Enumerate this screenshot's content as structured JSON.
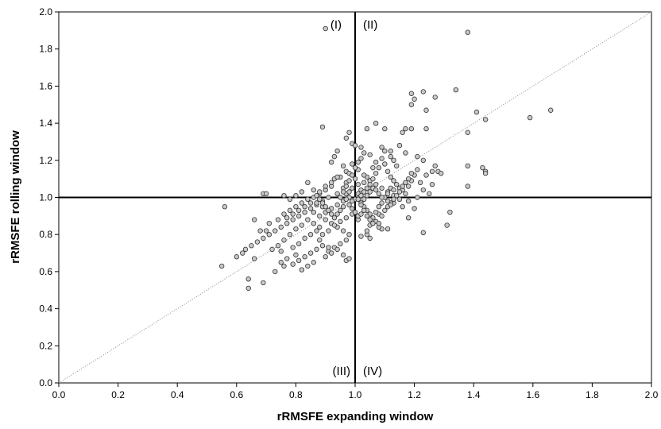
{
  "chart_data": {
    "type": "scatter",
    "title": "",
    "xlabel": "rRMSFE expanding window",
    "ylabel": "rRMSFE rolling window",
    "xlim": [
      0.0,
      2.0
    ],
    "ylim": [
      0.0,
      2.0
    ],
    "xticks": [
      "0.0",
      "0.2",
      "0.4",
      "0.6",
      "0.8",
      "1.0",
      "1.2",
      "1.4",
      "1.6",
      "1.8",
      "2.0"
    ],
    "yticks": [
      "0.0",
      "0.2",
      "0.4",
      "0.6",
      "0.8",
      "1.0",
      "1.2",
      "1.4",
      "1.6",
      "1.8",
      "2.0"
    ],
    "grid": false,
    "reference_lines": {
      "vertical": 1.0,
      "horizontal": 1.0,
      "diagonal": "y = x (dotted)"
    },
    "quadrant_labels": {
      "q1": "(I)",
      "q2": "(II)",
      "q3": "(III)",
      "q4": "(IV)"
    },
    "colors": {
      "marker_fill": "#c8c8c8",
      "marker_stroke": "#333333",
      "axes": "#000000",
      "diagonal": "#888888"
    },
    "points": [
      [
        0.9,
        1.91
      ],
      [
        1.38,
        1.89
      ],
      [
        1.66,
        1.47
      ],
      [
        1.59,
        1.43
      ],
      [
        1.44,
        1.42
      ],
      [
        1.41,
        1.46
      ],
      [
        1.38,
        1.35
      ],
      [
        1.34,
        1.58
      ],
      [
        1.27,
        1.54
      ],
      [
        1.23,
        1.57
      ],
      [
        1.2,
        1.53
      ],
      [
        1.19,
        1.56
      ],
      [
        1.19,
        1.5
      ],
      [
        1.24,
        1.47
      ],
      [
        1.19,
        1.37
      ],
      [
        1.16,
        1.35
      ],
      [
        1.17,
        1.37
      ],
      [
        1.24,
        1.37
      ],
      [
        1.1,
        1.37
      ],
      [
        1.07,
        1.4
      ],
      [
        1.04,
        1.37
      ],
      [
        0.98,
        1.35
      ],
      [
        0.97,
        1.32
      ],
      [
        0.89,
        1.38
      ],
      [
        0.99,
        1.29
      ],
      [
        1.0,
        1.28
      ],
      [
        1.02,
        1.27
      ],
      [
        0.94,
        1.25
      ],
      [
        1.03,
        1.24
      ],
      [
        1.05,
        1.23
      ],
      [
        1.09,
        1.27
      ],
      [
        1.15,
        1.28
      ],
      [
        1.12,
        1.25
      ],
      [
        1.17,
        1.24
      ],
      [
        1.21,
        1.22
      ],
      [
        1.23,
        1.2
      ],
      [
        1.27,
        1.17
      ],
      [
        1.28,
        1.14
      ],
      [
        1.38,
        1.17
      ],
      [
        1.43,
        1.16
      ],
      [
        1.44,
        1.14
      ],
      [
        1.44,
        1.13
      ],
      [
        1.38,
        1.06
      ],
      [
        1.32,
        0.92
      ],
      [
        1.31,
        0.85
      ],
      [
        1.23,
        0.81
      ],
      [
        1.2,
        0.94
      ],
      [
        1.18,
        0.89
      ],
      [
        1.16,
        0.95
      ],
      [
        1.13,
        0.97
      ],
      [
        1.08,
        0.91
      ],
      [
        1.05,
        0.85
      ],
      [
        1.04,
        0.8
      ],
      [
        1.04,
        0.82
      ],
      [
        1.05,
        0.78
      ],
      [
        1.02,
        0.79
      ],
      [
        1.09,
        0.83
      ],
      [
        1.11,
        0.83
      ],
      [
        1.08,
        0.84
      ],
      [
        1.01,
        0.88
      ],
      [
        1.0,
        0.99
      ],
      [
        1.01,
        1.02
      ],
      [
        1.02,
        1.04
      ],
      [
        1.03,
        1.08
      ],
      [
        1.04,
        1.11
      ],
      [
        1.06,
        1.16
      ],
      [
        1.07,
        1.19
      ],
      [
        1.09,
        1.21
      ],
      [
        1.1,
        1.18
      ],
      [
        1.11,
        1.14
      ],
      [
        1.12,
        1.11
      ],
      [
        1.13,
        1.09
      ],
      [
        1.14,
        1.07
      ],
      [
        1.15,
        1.05
      ],
      [
        1.16,
        1.04
      ],
      [
        1.17,
        1.02
      ],
      [
        1.18,
        1.06
      ],
      [
        1.19,
        1.09
      ],
      [
        1.2,
        1.12
      ],
      [
        1.21,
        1.15
      ],
      [
        1.22,
        1.08
      ],
      [
        1.23,
        1.04
      ],
      [
        1.25,
        1.02
      ],
      [
        1.26,
        1.07
      ],
      [
        1.24,
        1.12
      ],
      [
        1.26,
        1.14
      ],
      [
        1.29,
        1.13
      ],
      [
        1.21,
        1.0
      ],
      [
        1.18,
        0.98
      ],
      [
        1.15,
        0.99
      ],
      [
        1.13,
        1.01
      ],
      [
        1.11,
        1.03
      ],
      [
        1.09,
        1.05
      ],
      [
        1.07,
        1.07
      ],
      [
        1.05,
        1.09
      ],
      [
        1.03,
        1.12
      ],
      [
        1.01,
        1.15
      ],
      [
        0.99,
        1.18
      ],
      [
        0.97,
        1.14
      ],
      [
        0.95,
        1.11
      ],
      [
        0.93,
        1.1
      ],
      [
        0.92,
        1.06
      ],
      [
        0.9,
        1.04
      ],
      [
        0.88,
        1.02
      ],
      [
        0.86,
        1.04
      ],
      [
        0.84,
        1.08
      ],
      [
        0.82,
        1.03
      ],
      [
        0.8,
        1.01
      ],
      [
        0.78,
        0.99
      ],
      [
        0.76,
        1.01
      ],
      [
        0.69,
        1.02
      ],
      [
        0.7,
        1.02
      ],
      [
        0.92,
        1.19
      ],
      [
        0.93,
        1.22
      ],
      [
        0.96,
        1.17
      ],
      [
        0.98,
        1.13
      ],
      [
        0.97,
        1.08
      ],
      [
        0.96,
        1.05
      ],
      [
        0.94,
        1.02
      ],
      [
        0.91,
        1.0
      ],
      [
        0.89,
        0.98
      ],
      [
        0.87,
        0.96
      ],
      [
        0.85,
        0.94
      ],
      [
        0.83,
        0.92
      ],
      [
        0.81,
        0.9
      ],
      [
        0.79,
        0.88
      ],
      [
        0.77,
        0.86
      ],
      [
        0.75,
        0.84
      ],
      [
        0.73,
        0.82
      ],
      [
        0.71,
        0.8
      ],
      [
        0.69,
        0.78
      ],
      [
        0.67,
        0.76
      ],
      [
        0.65,
        0.74
      ],
      [
        0.63,
        0.72
      ],
      [
        0.62,
        0.7
      ],
      [
        0.6,
        0.68
      ],
      [
        0.56,
        0.95
      ],
      [
        0.55,
        0.63
      ],
      [
        0.64,
        0.51
      ],
      [
        0.64,
        0.56
      ],
      [
        0.69,
        0.54
      ],
      [
        0.66,
        0.67
      ],
      [
        0.7,
        0.82
      ],
      [
        0.71,
        0.86
      ],
      [
        0.66,
        0.88
      ],
      [
        0.68,
        0.82
      ],
      [
        0.73,
        0.6
      ],
      [
        0.75,
        0.65
      ],
      [
        0.76,
        0.63
      ],
      [
        0.75,
        0.71
      ],
      [
        0.77,
        0.67
      ],
      [
        0.8,
        0.69
      ],
      [
        0.79,
        0.73
      ],
      [
        0.81,
        0.75
      ],
      [
        0.83,
        0.78
      ],
      [
        0.85,
        0.8
      ],
      [
        0.87,
        0.82
      ],
      [
        0.88,
        0.84
      ],
      [
        0.86,
        0.86
      ],
      [
        0.84,
        0.88
      ],
      [
        0.82,
        0.85
      ],
      [
        0.8,
        0.83
      ],
      [
        0.78,
        0.8
      ],
      [
        0.76,
        0.77
      ],
      [
        0.74,
        0.74
      ],
      [
        0.72,
        0.72
      ],
      [
        0.74,
        0.88
      ],
      [
        0.76,
        0.91
      ],
      [
        0.78,
        0.93
      ],
      [
        0.8,
        0.95
      ],
      [
        0.82,
        0.97
      ],
      [
        0.84,
        0.99
      ],
      [
        0.86,
        0.92
      ],
      [
        0.88,
        0.9
      ],
      [
        0.9,
        0.88
      ],
      [
        0.92,
        0.86
      ],
      [
        0.94,
        0.84
      ],
      [
        0.96,
        0.82
      ],
      [
        0.98,
        0.8
      ],
      [
        0.97,
        0.77
      ],
      [
        0.95,
        0.75
      ],
      [
        0.93,
        0.73
      ],
      [
        0.91,
        0.71
      ],
      [
        0.89,
        0.74
      ],
      [
        0.87,
        0.72
      ],
      [
        0.85,
        0.7
      ],
      [
        0.83,
        0.68
      ],
      [
        0.81,
        0.66
      ],
      [
        0.79,
        0.64
      ],
      [
        0.82,
        0.61
      ],
      [
        0.84,
        0.63
      ],
      [
        0.86,
        0.65
      ],
      [
        0.9,
        0.68
      ],
      [
        0.92,
        0.7
      ],
      [
        0.94,
        0.72
      ],
      [
        0.96,
        0.69
      ],
      [
        0.97,
        0.66
      ],
      [
        0.98,
        0.67
      ],
      [
        0.91,
        0.73
      ],
      [
        0.88,
        0.77
      ],
      [
        0.89,
        0.8
      ],
      [
        0.91,
        0.82
      ],
      [
        0.93,
        0.85
      ],
      [
        0.95,
        0.87
      ],
      [
        0.97,
        0.89
      ],
      [
        0.99,
        0.91
      ],
      [
        0.99,
        0.94
      ],
      [
        0.98,
        0.96
      ],
      [
        0.96,
        0.98
      ],
      [
        0.94,
        0.96
      ],
      [
        0.92,
        0.94
      ],
      [
        0.9,
        0.92
      ],
      [
        0.89,
        0.95
      ],
      [
        0.87,
        0.97
      ],
      [
        0.86,
        1.0
      ],
      [
        0.88,
        1.03
      ],
      [
        0.9,
        1.06
      ],
      [
        0.92,
        1.08
      ],
      [
        0.94,
        1.11
      ],
      [
        0.97,
        1.02
      ],
      [
        0.98,
        1.0
      ],
      [
        0.99,
        0.98
      ],
      [
        1.02,
        0.97
      ],
      [
        1.03,
        0.95
      ],
      [
        1.04,
        0.93
      ],
      [
        1.05,
        0.91
      ],
      [
        1.06,
        0.89
      ],
      [
        1.07,
        0.87
      ],
      [
        1.08,
        0.86
      ],
      [
        1.09,
        0.9
      ],
      [
        1.1,
        0.93
      ],
      [
        1.11,
        0.95
      ],
      [
        1.12,
        0.97
      ],
      [
        1.13,
        0.99
      ],
      [
        1.14,
        1.01
      ],
      [
        1.15,
        1.03
      ],
      [
        1.16,
        1.06
      ],
      [
        1.17,
        1.08
      ],
      [
        1.18,
        1.1
      ],
      [
        1.19,
        1.13
      ],
      [
        1.14,
        1.17
      ],
      [
        1.13,
        1.2
      ],
      [
        1.12,
        1.22
      ],
      [
        1.1,
        1.25
      ],
      [
        1.08,
        1.16
      ],
      [
        1.07,
        1.13
      ],
      [
        1.06,
        1.1
      ],
      [
        1.05,
        1.07
      ],
      [
        1.04,
        1.05
      ],
      [
        1.03,
        1.03
      ],
      [
        1.02,
        1.01
      ],
      [
        1.01,
        0.99
      ],
      [
        1.02,
        0.96
      ],
      [
        1.03,
        0.93
      ],
      [
        1.04,
        0.9
      ],
      [
        1.05,
        0.88
      ],
      [
        1.06,
        0.86
      ],
      [
        1.07,
        0.92
      ],
      [
        1.08,
        0.95
      ],
      [
        1.09,
        0.97
      ],
      [
        1.1,
        1.0
      ],
      [
        1.11,
        1.02
      ],
      [
        1.12,
        1.05
      ],
      [
        1.13,
        1.04
      ],
      [
        1.01,
        1.07
      ],
      [
        1.0,
        1.1
      ],
      [
        0.99,
        1.05
      ],
      [
        0.98,
        1.03
      ],
      [
        0.97,
        0.99
      ],
      [
        0.96,
        0.95
      ],
      [
        0.95,
        0.93
      ],
      [
        0.94,
        0.91
      ],
      [
        0.93,
        0.89
      ],
      [
        0.92,
        0.91
      ],
      [
        0.91,
        0.93
      ],
      [
        0.9,
        0.95
      ],
      [
        0.89,
        0.97
      ],
      [
        0.88,
        0.99
      ],
      [
        0.87,
        1.01
      ],
      [
        0.85,
        0.97
      ],
      [
        0.83,
        0.95
      ],
      [
        0.81,
        0.93
      ],
      [
        0.79,
        0.91
      ],
      [
        0.77,
        0.89
      ],
      [
        1.0,
        0.92
      ],
      [
        1.01,
        0.9
      ],
      [
        1.02,
        0.91
      ],
      [
        1.03,
        0.99
      ],
      [
        1.04,
        1.01
      ],
      [
        1.05,
        1.03
      ],
      [
        1.06,
        1.05
      ],
      [
        1.07,
        1.04
      ],
      [
        1.08,
        1.02
      ],
      [
        1.09,
        1.0
      ],
      [
        1.11,
        0.98
      ],
      [
        1.12,
        0.96
      ],
      [
        0.95,
        1.0
      ],
      [
        0.96,
        1.03
      ],
      [
        0.97,
        1.06
      ],
      [
        0.98,
        1.09
      ],
      [
        0.99,
        1.12
      ],
      [
        1.0,
        1.16
      ],
      [
        1.01,
        1.19
      ],
      [
        1.02,
        1.21
      ]
    ]
  }
}
